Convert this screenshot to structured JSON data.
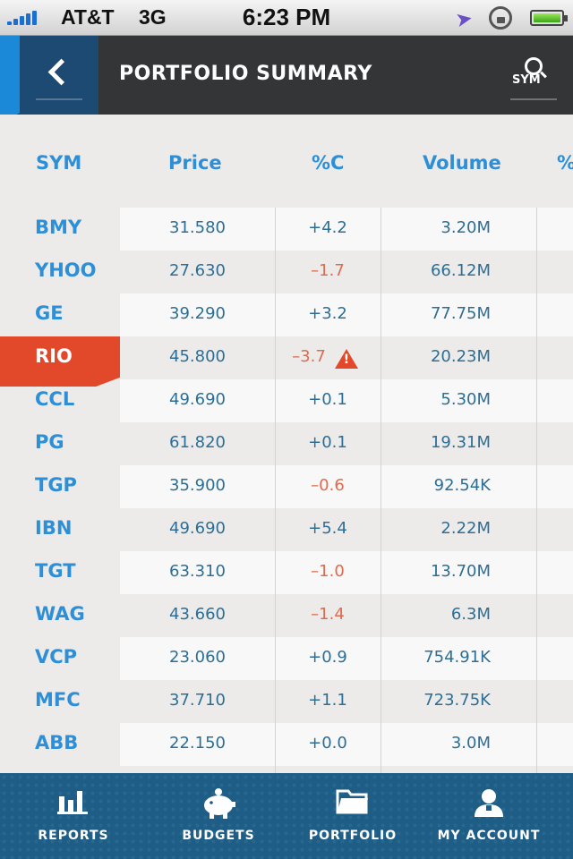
{
  "status_bar": {
    "carrier": "AT&T",
    "network": "3G",
    "time": "6:23 PM"
  },
  "header": {
    "title": "PORTFOLIO SUMMARY",
    "search_label": "SYM"
  },
  "columns": {
    "sym": "SYM",
    "price": "Price",
    "pct_change": "%C",
    "volume": "Volume",
    "more": "%"
  },
  "rows": [
    {
      "sym": "BMY",
      "price": "31.580",
      "chg": "+4.2",
      "vol": "3.20M"
    },
    {
      "sym": "YHOO",
      "price": "27.630",
      "chg": "–1.7",
      "vol": "66.12M"
    },
    {
      "sym": "GE",
      "price": "39.290",
      "chg": "+3.2",
      "vol": "77.75M"
    },
    {
      "sym": "RIO",
      "price": "45.800",
      "chg": "–3.7",
      "vol": "20.23M"
    },
    {
      "sym": "CCL",
      "price": "49.690",
      "chg": "+0.1",
      "vol": "5.30M"
    },
    {
      "sym": "PG",
      "price": "61.820",
      "chg": "+0.1",
      "vol": "19.31M"
    },
    {
      "sym": "TGP",
      "price": "35.900",
      "chg": "–0.6",
      "vol": "92.54K"
    },
    {
      "sym": "IBN",
      "price": "49.690",
      "chg": "+5.4",
      "vol": "2.22M"
    },
    {
      "sym": "TGT",
      "price": "63.310",
      "chg": "–1.0",
      "vol": "13.70M"
    },
    {
      "sym": "WAG",
      "price": "43.660",
      "chg": "–1.4",
      "vol": "6.3M"
    },
    {
      "sym": "VCP",
      "price": "23.060",
      "chg": "+0.9",
      "vol": "754.91K"
    },
    {
      "sym": "MFC",
      "price": "37.710",
      "chg": "+1.1",
      "vol": "723.75K"
    },
    {
      "sym": "ABB",
      "price": "22.150",
      "chg": "+0.0",
      "vol": "3.0M"
    }
  ],
  "tabs": {
    "reports": "REPORTS",
    "budgets": "BUDGETS",
    "portfolio": "PORTFOLIO",
    "account": "MY ACCOUNT"
  }
}
